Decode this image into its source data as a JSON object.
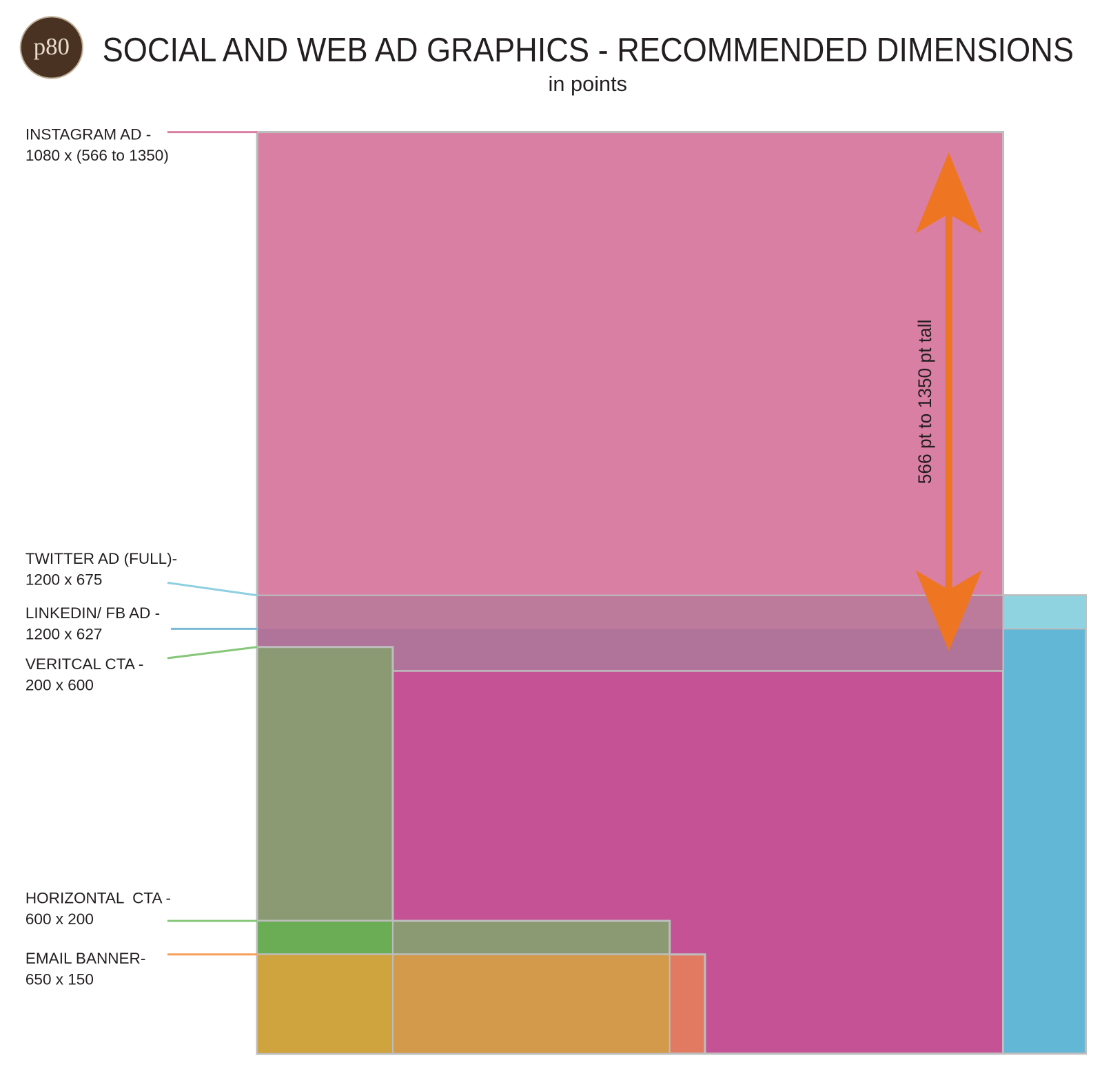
{
  "header": {
    "logo": "p80",
    "title": "SOCIAL AND WEB AD GRAPHICS - RECOMMENDED DIMENSIONS",
    "subtitle": "in points"
  },
  "labels": [
    {
      "name": "INSTAGRAM AD -",
      "size": "1080 x (566 to 1350)"
    },
    {
      "name": "TWITTER AD (FULL)-",
      "size": "1200 x 675"
    },
    {
      "name": "LINKEDIN/ FB AD -",
      "size": "1200 x 627"
    },
    {
      "name": "VERITCAL CTA -",
      "size": "200 x 600"
    },
    {
      "name": "HORIZONTAL  CTA -",
      "size": "600 x 200"
    },
    {
      "name": "EMAIL BANNER-",
      "size": "650 x 150"
    }
  ],
  "annotation": "566 pt to 1350 pt tall"
}
